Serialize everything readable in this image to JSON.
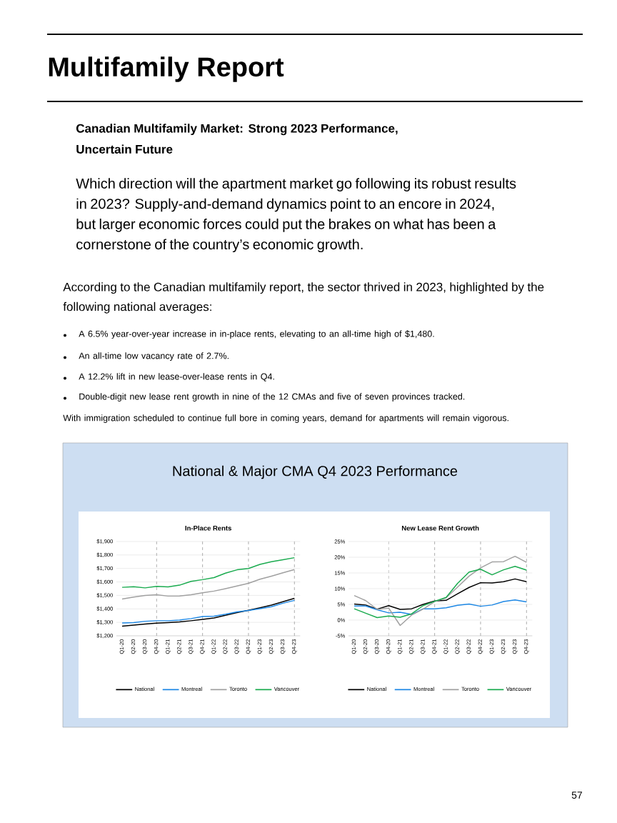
{
  "chart_data": [
    {
      "type": "other",
      "title": "Multifamily Report",
      "subtitle": "Canadian Multifamily Market: Strong 2023 Performance, Uncertain Future",
      "annotations": [
        "Which direction will the apartment market go following its robust results in 2023? Supply-and-demand dynamics point to an encore in 2024, but larger economic forces could put the brakes on what has been a cornerstone of the country’s economic growth.",
        "According to the Canadian multifamily report, the sector thrived in 2023, highlighted by the following national averages:",
        "A 6.5% year-over-year increase in in-place rents, elevating to an all-time high of $1,480.",
        "An all-time low vacancy rate of 2.7%.",
        "A 12.2% lift in new lease-over-lease rents in Q4.",
        "Double-digit new lease rent growth in nine of the 12 CMAs and five of seven provinces tracked.",
        "With immigration scheduled to continue full bore in coming years, demand for apartments will remain vigorous.",
        "National & Major CMA Q4 2023 Performance",
        "57"
      ]
    },
    {
      "type": "line",
      "title": "In-Place Rents",
      "grid": "y",
      "legend": "bottom",
      "categories": [
        "Q1-20",
        "Q2-20",
        "Q3-20",
        "Q4-20",
        "Q1-21",
        "Q2-21",
        "Q3-21",
        "Q4-21",
        "Q1-22",
        "Q2-22",
        "Q3-22",
        "Q4-22",
        "Q1-23",
        "Q2-23",
        "Q3-23",
        "Q4-23"
      ],
      "ylim": [
        1200,
        1900
      ],
      "yticks": [
        {
          "value": 1200,
          "label": "$1,200"
        },
        {
          "value": 1300,
          "label": "$1,300"
        },
        {
          "value": 1400,
          "label": "$1,400"
        },
        {
          "value": 1500,
          "label": "$1,500"
        },
        {
          "value": 1600,
          "label": "$1,600"
        },
        {
          "value": 1700,
          "label": "$1,700"
        },
        {
          "value": 1800,
          "label": "$1,800"
        },
        {
          "value": 1900,
          "label": "$1,900"
        }
      ],
      "ref_lines": [
        {
          "axis": "x",
          "value": "Q4-20",
          "color": "#999999",
          "line_style": "dashed"
        },
        {
          "axis": "x",
          "value": "Q4-21",
          "color": "#999999",
          "line_style": "dashed"
        },
        {
          "axis": "x",
          "value": "Q4-22",
          "color": "#999999",
          "line_style": "dashed"
        },
        {
          "axis": "x",
          "value": "Q4-23",
          "color": "#999999",
          "line_style": "dashed"
        }
      ],
      "series": [
        {
          "name": "National",
          "color": "#000000",
          "values": [
            1272,
            1280,
            1288,
            1294,
            1298,
            1303,
            1312,
            1322,
            1333,
            1352,
            1372,
            1390,
            1408,
            1428,
            1453,
            1478
          ]
        },
        {
          "name": "Montreal",
          "color": "#1e88e5",
          "values": [
            1296,
            1298,
            1308,
            1312,
            1312,
            1317,
            1328,
            1343,
            1346,
            1360,
            1378,
            1388,
            1402,
            1416,
            1442,
            1463
          ]
        },
        {
          "name": "Toronto",
          "color": "#a0a0a0",
          "values": [
            1473,
            1488,
            1500,
            1505,
            1495,
            1496,
            1505,
            1519,
            1532,
            1550,
            1570,
            1590,
            1620,
            1643,
            1668,
            1692
          ]
        },
        {
          "name": "Vancouver",
          "color": "#1aab4f",
          "values": [
            1560,
            1564,
            1556,
            1567,
            1563,
            1576,
            1604,
            1617,
            1632,
            1665,
            1690,
            1700,
            1730,
            1750,
            1765,
            1780
          ]
        }
      ]
    },
    {
      "type": "line",
      "title": "New Lease Rent Growth",
      "grid": "y",
      "legend": "bottom",
      "categories": [
        "Q1-20",
        "Q2-20",
        "Q3-20",
        "Q4-20",
        "Q1-21",
        "Q2-21",
        "Q3-21",
        "Q4-21",
        "Q1-22",
        "Q2-22",
        "Q3-22",
        "Q4-22",
        "Q1-23",
        "Q2-23",
        "Q3-23",
        "Q4-23"
      ],
      "ylim": [
        -5,
        25
      ],
      "yticks": [
        {
          "value": -5,
          "label": "-5%"
        },
        {
          "value": 0,
          "label": "0%"
        },
        {
          "value": 5,
          "label": "5%"
        },
        {
          "value": 10,
          "label": "10%"
        },
        {
          "value": 15,
          "label": "15%"
        },
        {
          "value": 20,
          "label": "20%"
        },
        {
          "value": 25,
          "label": "25%"
        }
      ],
      "ref_lines": [
        {
          "axis": "x",
          "value": "Q4-20",
          "color": "#999999",
          "line_style": "dashed"
        },
        {
          "axis": "x",
          "value": "Q4-21",
          "color": "#999999",
          "line_style": "dashed"
        },
        {
          "axis": "x",
          "value": "Q4-22",
          "color": "#999999",
          "line_style": "dashed"
        },
        {
          "axis": "x",
          "value": "Q4-23",
          "color": "#999999",
          "line_style": "dashed"
        }
      ],
      "series": [
        {
          "name": "National",
          "color": "#000000",
          "values": [
            5.1,
            4.8,
            3.5,
            4.6,
            3.4,
            3.6,
            5.0,
            6.1,
            6.3,
            8.4,
            10.4,
            11.9,
            11.8,
            12.2,
            13.1,
            12.2
          ]
        },
        {
          "name": "Montreal",
          "color": "#1e88e5",
          "values": [
            4.5,
            4.5,
            3.3,
            2.3,
            2.5,
            1.8,
            3.6,
            3.6,
            3.9,
            4.7,
            5.1,
            4.4,
            4.8,
            5.9,
            6.4,
            5.8
          ]
        },
        {
          "name": "Toronto",
          "color": "#a0a0a0",
          "values": [
            7.8,
            6.2,
            3.4,
            3.8,
            -1.7,
            1.6,
            3.5,
            5.9,
            7.1,
            10.5,
            14.0,
            16.6,
            18.5,
            18.6,
            20.3,
            18.4
          ]
        },
        {
          "name": "Vancouver",
          "color": "#1aab4f",
          "values": [
            3.6,
            2.2,
            0.8,
            1.3,
            0.9,
            2.0,
            4.6,
            6.0,
            7.2,
            11.7,
            15.3,
            16.2,
            14.4,
            16.0,
            17.1,
            15.9
          ]
        }
      ]
    }
  ]
}
